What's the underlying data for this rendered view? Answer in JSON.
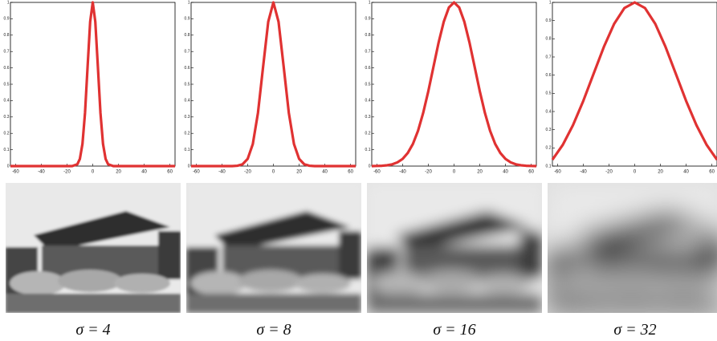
{
  "chart_data": [
    {
      "type": "line",
      "title": "σ = 4",
      "x": [
        -64,
        -32,
        -16,
        -12,
        -10,
        -8,
        -6,
        -4,
        -2,
        0,
        2,
        4,
        6,
        8,
        10,
        12,
        16,
        32,
        64
      ],
      "values": [
        0,
        0,
        0,
        0.011,
        0.044,
        0.135,
        0.325,
        0.607,
        0.882,
        1,
        0.882,
        0.607,
        0.325,
        0.135,
        0.044,
        0.011,
        0,
        0,
        0
      ],
      "color": "#e03232",
      "xlim": [
        -64,
        64
      ],
      "ylim": [
        0,
        1
      ],
      "xticks": [
        -60,
        -40,
        -20,
        0,
        20,
        40,
        60
      ],
      "yticks": [
        0,
        0.1,
        0.2,
        0.3,
        0.4,
        0.5,
        0.6,
        0.7,
        0.8,
        0.9,
        1
      ]
    },
    {
      "type": "line",
      "title": "σ = 8",
      "x": [
        -64,
        -32,
        -28,
        -24,
        -20,
        -16,
        -12,
        -8,
        -4,
        0,
        4,
        8,
        12,
        16,
        20,
        24,
        28,
        32,
        64
      ],
      "values": [
        0,
        0,
        0.002,
        0.011,
        0.044,
        0.135,
        0.325,
        0.607,
        0.882,
        1,
        0.882,
        0.607,
        0.325,
        0.135,
        0.044,
        0.011,
        0.002,
        0,
        0
      ],
      "color": "#e03232",
      "xlim": [
        -64,
        64
      ],
      "ylim": [
        0,
        1
      ],
      "xticks": [
        -60,
        -40,
        -20,
        0,
        20,
        40,
        60
      ],
      "yticks": [
        0,
        0.1,
        0.2,
        0.3,
        0.4,
        0.5,
        0.6,
        0.7,
        0.8,
        0.9,
        1
      ]
    },
    {
      "type": "line",
      "title": "σ = 16",
      "x": [
        -64,
        -60,
        -56,
        -52,
        -48,
        -44,
        -40,
        -36,
        -32,
        -28,
        -24,
        -20,
        -16,
        -12,
        -8,
        -4,
        0,
        4,
        8,
        12,
        16,
        20,
        24,
        28,
        32,
        36,
        40,
        44,
        48,
        52,
        56,
        60,
        64
      ],
      "values": [
        0,
        0.001,
        0.002,
        0.005,
        0.011,
        0.023,
        0.044,
        0.08,
        0.135,
        0.216,
        0.325,
        0.458,
        0.607,
        0.755,
        0.882,
        0.969,
        1,
        0.969,
        0.882,
        0.755,
        0.607,
        0.458,
        0.325,
        0.216,
        0.135,
        0.08,
        0.044,
        0.023,
        0.011,
        0.005,
        0.002,
        0.001,
        0
      ],
      "color": "#e03232",
      "xlim": [
        -64,
        64
      ],
      "ylim": [
        0,
        1
      ],
      "xticks": [
        -60,
        -40,
        -20,
        0,
        20,
        40,
        60
      ],
      "yticks": [
        0,
        0.1,
        0.2,
        0.3,
        0.4,
        0.5,
        0.6,
        0.7,
        0.8,
        0.9,
        1
      ]
    },
    {
      "type": "line",
      "title": "σ = 32",
      "x": [
        -64,
        -56,
        -48,
        -40,
        -32,
        -24,
        -16,
        -8,
        0,
        8,
        16,
        24,
        32,
        40,
        48,
        56,
        64
      ],
      "values": [
        0.135,
        0.216,
        0.325,
        0.458,
        0.607,
        0.755,
        0.882,
        0.969,
        1,
        0.969,
        0.882,
        0.755,
        0.607,
        0.458,
        0.325,
        0.216,
        0.135
      ],
      "color": "#e03232",
      "xlim": [
        -64,
        64
      ],
      "ylim": [
        0.1,
        1
      ],
      "xticks": [
        -60,
        -40,
        -20,
        0,
        20,
        40,
        60
      ],
      "yticks": [
        0.1,
        0.2,
        0.3,
        0.4,
        0.5,
        0.6,
        0.7,
        0.8,
        0.9,
        1
      ]
    }
  ]
}
